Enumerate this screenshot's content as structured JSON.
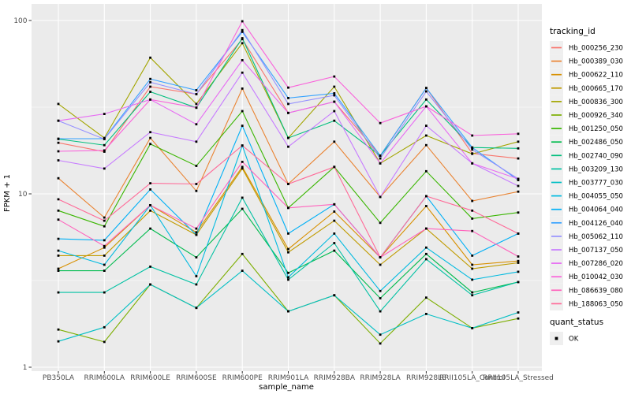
{
  "chart_data": {
    "type": "line",
    "title": "",
    "xlabel": "sample_name",
    "ylabel": "FPKM + 1",
    "yscale": "log10",
    "ylim": [
      1,
      100
    ],
    "ytick_labels": [
      "1",
      "10",
      "100"
    ],
    "ytick_values": [
      1,
      10,
      100
    ],
    "minor_gridlines": [
      3.162,
      31.62
    ],
    "grid": "on",
    "legend_position": "right",
    "point_shape": "filled-square",
    "point_color": "#000000",
    "categories": [
      "PB350LA",
      "RRIM600LA",
      "RRIM600LE",
      "RRIM600SE",
      "RRIM600PE",
      "RRIM901LA",
      "RRIM928BA",
      "RRIM928LA",
      "RRIM928LE",
      "RRII105LA_Control",
      "RRII105LA_Stressed"
    ],
    "series": [
      {
        "name": "Hb_000256_230",
        "color": "#F8766D",
        "values": [
          19.7,
          17.5,
          41.5,
          37.6,
          78,
          29.3,
          34,
          16.6,
          40.8,
          17.1,
          16
        ]
      },
      {
        "name": "Hb_000389_030",
        "color": "#EA8331",
        "values": [
          12.3,
          7.3,
          21,
          10.4,
          40.5,
          11.4,
          20,
          9.6,
          19.1,
          9.1,
          10.3
        ]
      },
      {
        "name": "Hb_000622_110",
        "color": "#D89000",
        "values": [
          3.7,
          4.9,
          8.6,
          6.0,
          14.3,
          4.8,
          7.9,
          4.3,
          8.5,
          3.9,
          4.1
        ]
      },
      {
        "name": "Hb_000665_170",
        "color": "#C09B00",
        "values": [
          4.4,
          4.4,
          8.0,
          5.8,
          14.0,
          4.6,
          7.0,
          3.9,
          6.3,
          3.7,
          4.0
        ]
      },
      {
        "name": "Hb_000836_300",
        "color": "#A3A500",
        "values": [
          33,
          21,
          61,
          33,
          74,
          21,
          41.5,
          15,
          21.7,
          17,
          20
        ]
      },
      {
        "name": "Hb_000926_340",
        "color": "#7CAE00",
        "values": [
          1.65,
          1.4,
          3.0,
          2.2,
          4.5,
          2.1,
          2.6,
          1.37,
          2.52,
          1.68,
          1.91
        ]
      },
      {
        "name": "Hb_001250_050",
        "color": "#39B600",
        "values": [
          8.0,
          6.5,
          19.4,
          14.5,
          30,
          8.3,
          14.3,
          6.8,
          13.5,
          7.2,
          7.8
        ]
      },
      {
        "name": "Hb_002486_050",
        "color": "#00BB4E",
        "values": [
          3.6,
          3.6,
          6.3,
          4.3,
          8.2,
          3.5,
          4.7,
          2.5,
          4.5,
          2.7,
          3.1
        ]
      },
      {
        "name": "Hb_002740_090",
        "color": "#00BF7D",
        "values": [
          20.7,
          19.1,
          38.8,
          31.4,
          79,
          21,
          26.4,
          16.6,
          35,
          18.5,
          18.3
        ]
      },
      {
        "name": "Hb_003209_130",
        "color": "#00C1A3",
        "values": [
          2.7,
          2.7,
          3.8,
          3.0,
          9.5,
          3.2,
          5.2,
          2.1,
          4.2,
          2.6,
          3.1
        ]
      },
      {
        "name": "Hb_003777_030",
        "color": "#00BFC4",
        "values": [
          1.41,
          1.7,
          3.0,
          2.2,
          3.6,
          2.1,
          2.6,
          1.54,
          2.03,
          1.68,
          2.07
        ]
      },
      {
        "name": "Hb_004055_050",
        "color": "#00BAE0",
        "values": [
          4.7,
          3.9,
          8.6,
          3.35,
          19,
          3.3,
          5.9,
          2.75,
          4.9,
          3.2,
          3.55
        ]
      },
      {
        "name": "Hb_004064_040",
        "color": "#00B0F6",
        "values": [
          5.5,
          5.4,
          10.6,
          5.8,
          24.7,
          5.9,
          8.7,
          4.3,
          9.7,
          4.4,
          5.9
        ]
      },
      {
        "name": "Hb_004126_040",
        "color": "#35A2FF",
        "values": [
          20.8,
          20.8,
          46,
          39.6,
          86,
          35.7,
          38,
          16.6,
          40.8,
          18.5,
          12
        ]
      },
      {
        "name": "Hb_005062_110",
        "color": "#9590FF",
        "values": [
          26.4,
          20.7,
          44,
          37.6,
          88,
          33,
          37,
          16,
          39,
          18,
          12.2
        ]
      },
      {
        "name": "Hb_007137_050",
        "color": "#C77CFF",
        "values": [
          15.6,
          14,
          22.7,
          20,
          50,
          18.7,
          30,
          9.6,
          24.7,
          15,
          11.1
        ]
      },
      {
        "name": "Hb_007286_020",
        "color": "#E76BF3",
        "values": [
          26.4,
          28.9,
          35,
          25.2,
          59,
          29.3,
          34,
          15,
          32,
          15,
          12.2
        ]
      },
      {
        "name": "Hb_010042_030",
        "color": "#FA62DB",
        "values": [
          17.6,
          17.8,
          35,
          31.4,
          99,
          41,
          47.5,
          25.6,
          32,
          21.7,
          22.2
        ]
      },
      {
        "name": "Hb_086639_080",
        "color": "#FF62BC",
        "values": [
          7.1,
          5.0,
          8.6,
          6.3,
          15.3,
          8.3,
          8.7,
          4.3,
          6.3,
          6.1,
          4.35
        ]
      },
      {
        "name": "Hb_188063_050",
        "color": "#FF6A98",
        "values": [
          9.3,
          7.0,
          11.5,
          11.4,
          19,
          11.4,
          14.3,
          4.3,
          9.7,
          8.0,
          5.9
        ]
      }
    ]
  },
  "legend": {
    "tracking_title": "tracking_id",
    "quant_title": "quant_status",
    "quant_items": [
      {
        "label": "OK",
        "marker": "black-square"
      }
    ]
  },
  "colors": {
    "background": "#FFFFFF",
    "panel_bg": "#EBEBEB",
    "grid": "#FFFFFF",
    "tick_label": "#4D4D4D",
    "tick_mark": "#333333",
    "axis_title": "#000000",
    "legend_key_bg": "#EFEFEF",
    "point": "#000000"
  }
}
